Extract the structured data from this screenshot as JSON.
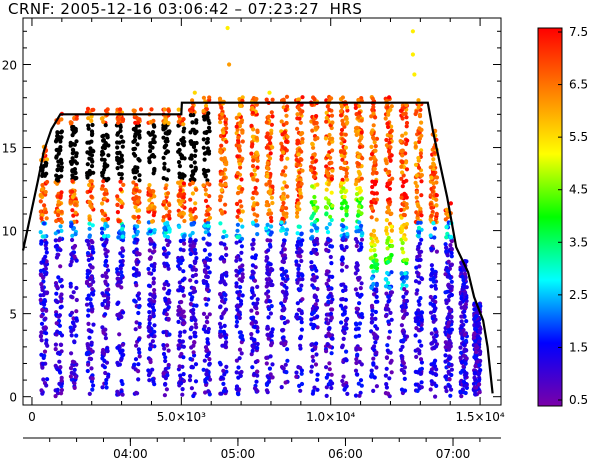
{
  "chart_data": {
    "type": "scatter",
    "title": "CRNF: 2005-12-16 03:06:42 – 07:23:27  HRS",
    "x_range": [
      -300,
      15700
    ],
    "y_range": [
      -0.5,
      22.8
    ],
    "x_ticks": [
      {
        "value": 0,
        "label": "0"
      },
      {
        "value": 5000,
        "label": "5.0×10³"
      },
      {
        "value": 10000,
        "label": "1.0×10⁴"
      },
      {
        "value": 15000,
        "label": "1.5×10⁴"
      }
    ],
    "y_ticks": [
      {
        "value": 0,
        "label": "0"
      },
      {
        "value": 5,
        "label": "5"
      },
      {
        "value": 10,
        "label": "10"
      },
      {
        "value": 15,
        "label": "15"
      },
      {
        "value": 20,
        "label": "20"
      }
    ],
    "time_axis": {
      "labels": [
        {
          "value": 3294,
          "label": "04:00"
        },
        {
          "value": 6894,
          "label": "05:00"
        },
        {
          "value": 10494,
          "label": "06:00"
        },
        {
          "value": 14094,
          "label": "07:00"
        }
      ]
    },
    "colorbar": {
      "range": [
        0.5,
        7.5
      ],
      "labels": [
        "7.5",
        "6.5",
        "5.5",
        "4.5",
        "3.5",
        "2.5",
        "1.5",
        "0.5"
      ],
      "colors": [
        "#ff0000",
        "#ff8000",
        "#ffff00",
        "#00ff00",
        "#00ffff",
        "#0000ff",
        "#7b00a8"
      ]
    },
    "envelope": [
      [
        -300,
        8.8
      ],
      [
        200,
        13.0
      ],
      [
        400,
        14.8
      ],
      [
        650,
        16.1
      ],
      [
        950,
        17.0
      ],
      [
        5000,
        17.0
      ],
      [
        5020,
        17.7
      ],
      [
        13250,
        17.7
      ],
      [
        13420,
        16.0
      ],
      [
        13900,
        12.0
      ],
      [
        14200,
        9.0
      ],
      [
        14600,
        7.5
      ],
      [
        14800,
        6.0
      ],
      [
        15100,
        4.6
      ],
      [
        15250,
        3.0
      ],
      [
        15420,
        0.2
      ]
    ],
    "scan_columns": [
      400,
      900,
      1400,
      1950,
      2450,
      2950,
      3500,
      4000,
      4500,
      5000,
      5400,
      5850,
      6400,
      6950,
      7450,
      7950,
      8450,
      8950,
      9450,
      9950,
      10450,
      10950,
      11450,
      11950,
      12450,
      12950,
      13450,
      13950,
      14450,
      14900
    ],
    "outliers": [
      {
        "x": 6550,
        "y": 22.2,
        "v": 5.6
      },
      {
        "x": 6600,
        "y": 20.0,
        "v": 6.3
      },
      {
        "x": 5450,
        "y": 18.3,
        "v": 5.8
      },
      {
        "x": 7950,
        "y": 18.3,
        "v": 5.6
      },
      {
        "x": 12750,
        "y": 22.0,
        "v": 5.6
      },
      {
        "x": 12750,
        "y": 20.6,
        "v": 5.6
      },
      {
        "x": 12800,
        "y": 19.4,
        "v": 5.6
      },
      {
        "x": 3650,
        "y": 17.3,
        "v": 7.1
      },
      {
        "x": 4000,
        "y": 17.3,
        "v": 7.1
      },
      {
        "x": 2950,
        "y": 17.3,
        "v": 7.2
      }
    ]
  }
}
